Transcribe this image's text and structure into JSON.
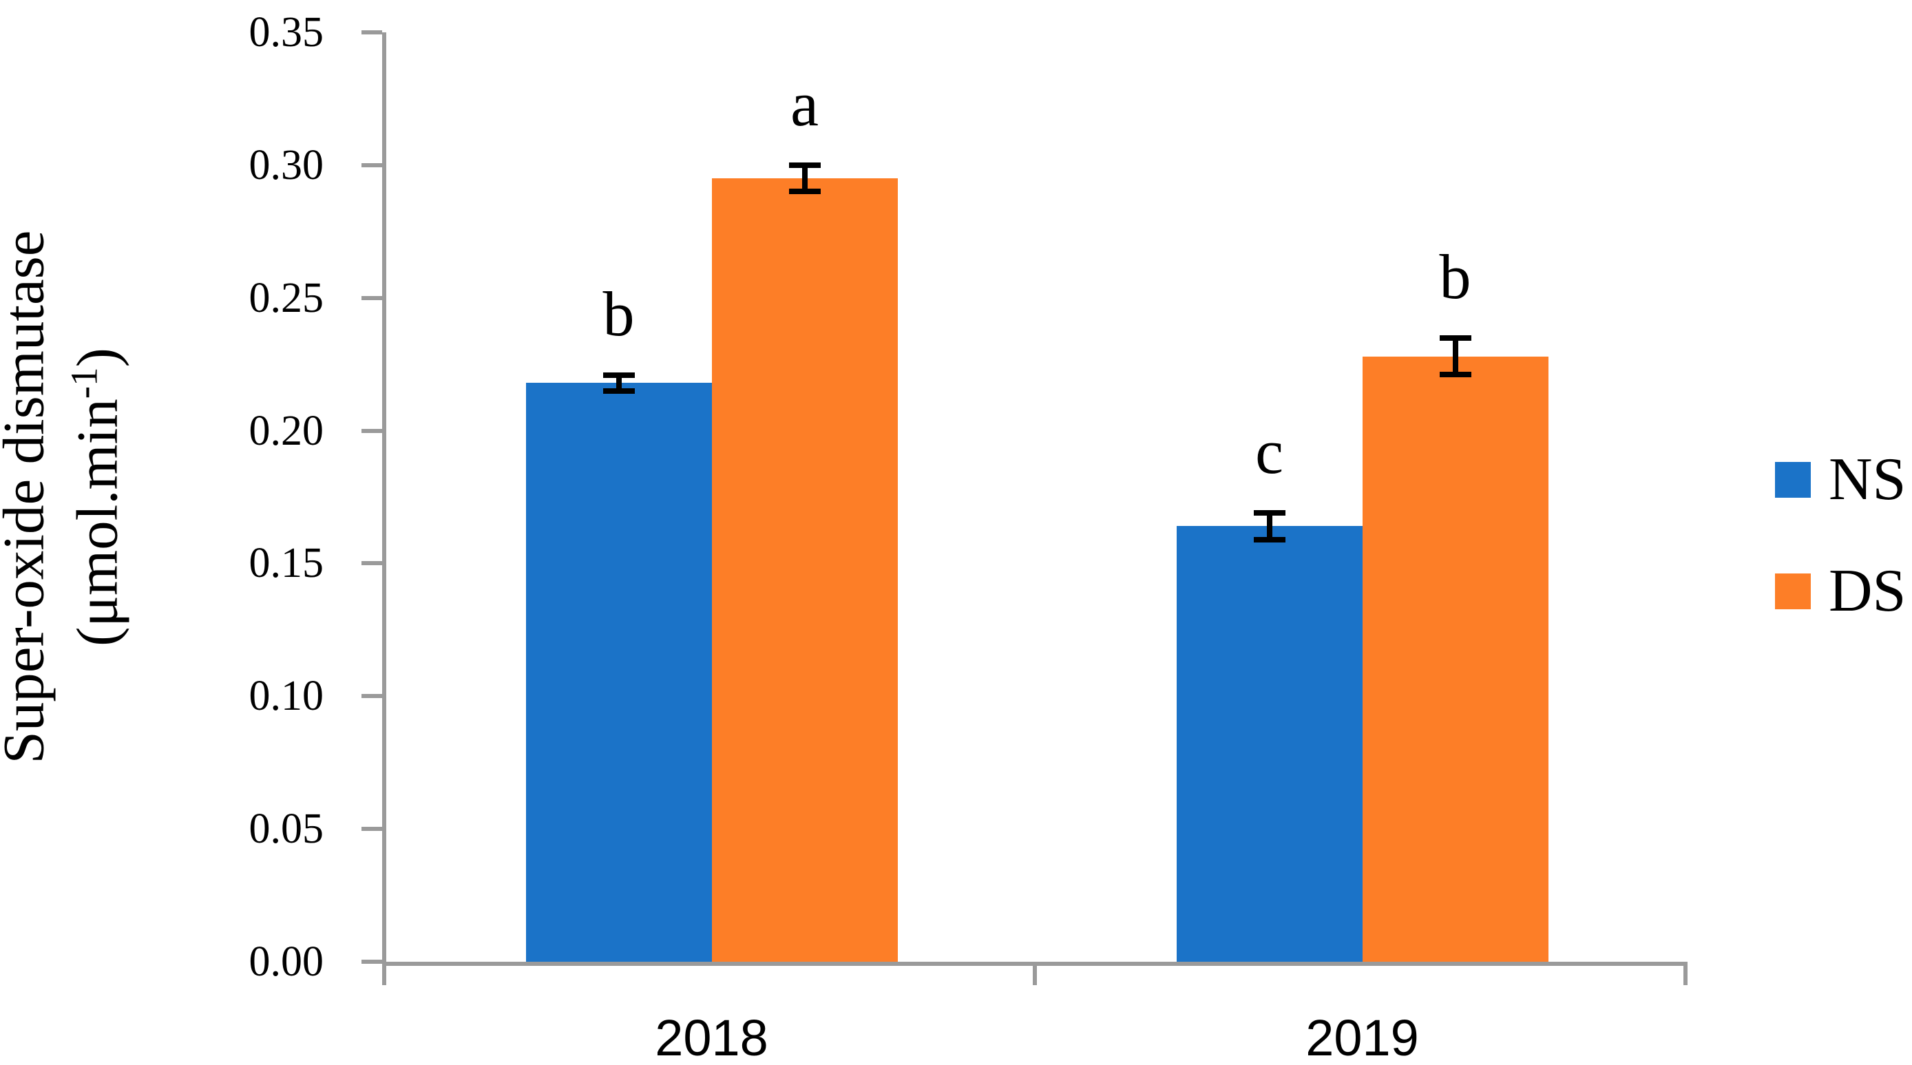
{
  "figure": {
    "y_axis_title_line1": "Super-oxide dismutase",
    "y_axis_unit_prefix": "(μmol.min",
    "y_axis_unit_sup": "-1",
    "y_axis_unit_suffix": ")"
  },
  "chart_data": {
    "type": "bar",
    "categories": [
      "2018",
      "2019"
    ],
    "series": [
      {
        "name": "NS",
        "color": "#1B73C8",
        "values": [
          0.218,
          0.164
        ],
        "errors": [
          0.004,
          0.006
        ],
        "letters": [
          "b",
          "c"
        ]
      },
      {
        "name": "DS",
        "color": "#FD7E27",
        "values": [
          0.295,
          0.228
        ],
        "errors": [
          0.006,
          0.008
        ],
        "letters": [
          "a",
          "b"
        ]
      }
    ],
    "title": "",
    "xlabel": "",
    "ylabel": "Super-oxide dismutase (μmol.min⁻¹)",
    "ylim": [
      0,
      0.35
    ],
    "ytick_step": 0.05,
    "ytick_labels": [
      "0.00",
      "0.05",
      "0.10",
      "0.15",
      "0.20",
      "0.25",
      "0.30",
      "0.35"
    ],
    "grid": false,
    "legend_position": "right",
    "error_bar_color": "#000000",
    "axis_color": "#9A9A9A"
  }
}
